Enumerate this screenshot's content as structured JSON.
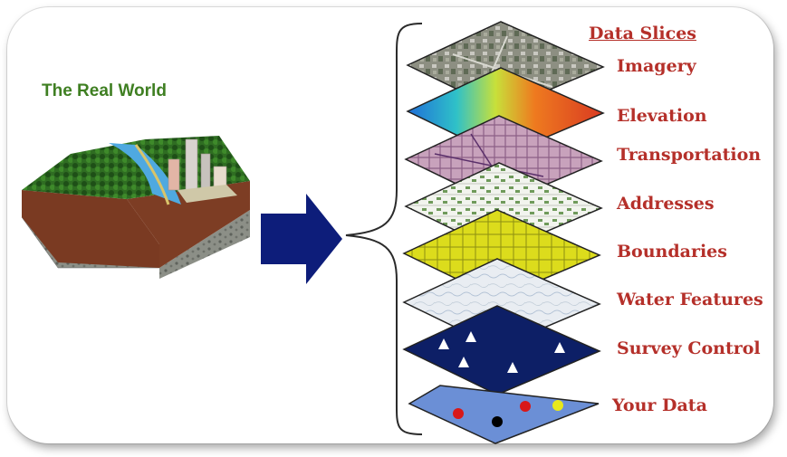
{
  "real_world": {
    "title": "The Real World"
  },
  "slices": {
    "heading": "Data Slices",
    "layers": [
      {
        "label": "Imagery"
      },
      {
        "label": "Elevation"
      },
      {
        "label": "Transportation"
      },
      {
        "label": "Addresses"
      },
      {
        "label": "Boundaries"
      },
      {
        "label": "Water Features"
      },
      {
        "label": "Survey Control"
      },
      {
        "label": "Your Data"
      }
    ]
  },
  "colors": {
    "title_green": "#3f7f22",
    "label_red": "#b5302a",
    "arrow_navy": "#0d1d7a",
    "survey_navy": "#0d1f66",
    "your_data_blue": "#6b8fd6"
  }
}
